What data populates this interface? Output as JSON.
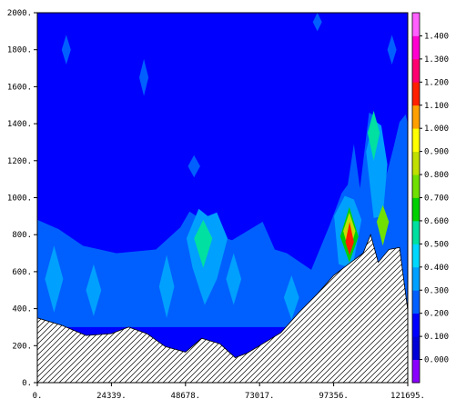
{
  "chart_data": {
    "type": "heatmap",
    "title": "",
    "xlabel": "",
    "ylabel": "",
    "xlim": [
      0,
      121695
    ],
    "ylim": [
      0,
      2000
    ],
    "x_ticks": [
      {
        "value": 0,
        "label": "0."
      },
      {
        "value": 24339,
        "label": "24339."
      },
      {
        "value": 48678,
        "label": "48678."
      },
      {
        "value": 73017,
        "label": "73017."
      },
      {
        "value": 97356,
        "label": "97356."
      },
      {
        "value": 121695,
        "label": "121695."
      }
    ],
    "y_ticks": [
      {
        "value": 0,
        "label": "0."
      },
      {
        "value": 200,
        "label": "200."
      },
      {
        "value": 400,
        "label": "400."
      },
      {
        "value": 600,
        "label": "600."
      },
      {
        "value": 800,
        "label": "800."
      },
      {
        "value": 1000,
        "label": "1000."
      },
      {
        "value": 1200,
        "label": "1200."
      },
      {
        "value": 1400,
        "label": "1400."
      },
      {
        "value": 1600,
        "label": "1600."
      },
      {
        "value": 1800,
        "label": "1800."
      },
      {
        "value": 2000,
        "label": "2000."
      }
    ],
    "colorbar": {
      "levels": [
        {
          "label": "",
          "color": "#8a00ff"
        },
        {
          "label": "0.000",
          "color": "#0000d8"
        },
        {
          "label": "0.100",
          "color": "#0000ff"
        },
        {
          "label": "0.200",
          "color": "#0060ff"
        },
        {
          "label": "0.300",
          "color": "#00a0ff"
        },
        {
          "label": "0.400",
          "color": "#00d8ff"
        },
        {
          "label": "0.500",
          "color": "#00e0a0"
        },
        {
          "label": "0.600",
          "color": "#00d000"
        },
        {
          "label": "0.700",
          "color": "#70e000"
        },
        {
          "label": "0.800",
          "color": "#c0e000"
        },
        {
          "label": "0.900",
          "color": "#ffff00"
        },
        {
          "label": "1.000",
          "color": "#ffa000"
        },
        {
          "label": "1.100",
          "color": "#ff2000"
        },
        {
          "label": "1.200",
          "color": "#ff0070"
        },
        {
          "label": "1.300",
          "color": "#ff00d0"
        },
        {
          "label": "1.400",
          "color": "#ff60ff"
        }
      ]
    },
    "terrain": {
      "x": [
        0,
        8000,
        16000,
        24339,
        30000,
        36000,
        42000,
        48678,
        54000,
        60000,
        65000,
        69000,
        73017,
        80000,
        86000,
        92000,
        97356,
        103000,
        107000,
        109500,
        112000,
        115500,
        119000,
        121695
      ],
      "y": [
        350,
        310,
        255,
        265,
        300,
        265,
        195,
        165,
        240,
        210,
        135,
        160,
        200,
        270,
        380,
        480,
        580,
        650,
        700,
        800,
        650,
        720,
        730,
        390
      ]
    },
    "features": [
      {
        "label": "0.200",
        "x": [
          0,
          7000,
          15000,
          26000,
          39000,
          47000,
          50000,
          56000,
          60000,
          64000,
          70000,
          74000,
          78000,
          82000,
          90000,
          96000,
          100000,
          102000,
          104000,
          106000,
          109000,
          111000,
          114000,
          117000,
          119000,
          121000,
          121695,
          121695,
          112000,
          105000,
          86000,
          66000,
          40000,
          0
        ],
        "y": [
          880,
          830,
          740,
          700,
          720,
          840,
          925,
          860,
          790,
          770,
          830,
          870,
          720,
          700,
          610,
          850,
          1025,
          1070,
          1290,
          1050,
          1460,
          1440,
          1080,
          1270,
          1410,
          1450,
          1400,
          300,
          300,
          300,
          300,
          300,
          300,
          300
        ]
      },
      {
        "label": "0.200",
        "x": [
          8000,
          9500,
          11000,
          9500
        ],
        "y": [
          1800,
          1720,
          1800,
          1880
        ]
      },
      {
        "label": "0.200",
        "x": [
          33500,
          35000,
          36500,
          35000
        ],
        "y": [
          1650,
          1550,
          1650,
          1750
        ]
      },
      {
        "label": "0.200",
        "x": [
          90500,
          92000,
          93500,
          92000
        ],
        "y": [
          1950,
          1900,
          1950,
          2000
        ]
      },
      {
        "label": "0.200",
        "x": [
          115000,
          116500,
          118000,
          116500
        ],
        "y": [
          1800,
          1720,
          1800,
          1880
        ]
      },
      {
        "label": "0.200",
        "x": [
          49500,
          51500,
          53500,
          51500
        ],
        "y": [
          1170,
          1110,
          1170,
          1230
        ]
      },
      {
        "label": "0.300",
        "x": [
          2500,
          5500,
          8500,
          5500
        ],
        "y": [
          560,
          380,
          560,
          740
        ]
      },
      {
        "label": "0.300",
        "x": [
          16000,
          18500,
          21000,
          18500
        ],
        "y": [
          500,
          360,
          500,
          640
        ]
      },
      {
        "label": "0.300",
        "x": [
          40000,
          42500,
          45000,
          42500
        ],
        "y": [
          520,
          350,
          520,
          690
        ]
      },
      {
        "label": "0.300",
        "x": [
          49000,
          53000,
          56000,
          59000,
          62500,
          59000,
          55000,
          51000
        ],
        "y": [
          780,
          940,
          900,
          920,
          780,
          560,
          420,
          620
        ]
      },
      {
        "label": "0.300",
        "x": [
          62000,
          64500,
          67000,
          64500
        ],
        "y": [
          560,
          420,
          560,
          700
        ]
      },
      {
        "label": "0.300",
        "x": [
          81000,
          83500,
          86000,
          83500
        ],
        "y": [
          460,
          340,
          460,
          580
        ]
      },
      {
        "label": "0.300",
        "x": [
          97500,
          101000,
          104000,
          106500,
          103500,
          99000
        ],
        "y": [
          900,
          1010,
          990,
          880,
          620,
          640
        ]
      },
      {
        "label": "0.300",
        "x": [
          108000,
          110500,
          113000,
          115000,
          113500,
          110500
        ],
        "y": [
          1250,
          1420,
          1390,
          1180,
          900,
          890
        ]
      },
      {
        "label": "0.500",
        "x": [
          51500,
          54500,
          57500,
          54500
        ],
        "y": [
          780,
          880,
          780,
          620
        ]
      },
      {
        "label": "0.500",
        "x": [
          108500,
          110500,
          112500,
          110500
        ],
        "y": [
          1350,
          1470,
          1350,
          1200
        ]
      },
      {
        "label": "0.600",
        "x": [
          99500,
          102500,
          105500,
          102500
        ],
        "y": [
          790,
          950,
          790,
          650
        ]
      },
      {
        "label": "0.700",
        "x": [
          111500,
          113500,
          115500,
          113500
        ],
        "y": [
          870,
          960,
          870,
          740
        ]
      },
      {
        "label": "0.800",
        "x": [
          100500,
          102500,
          104500,
          102500
        ],
        "y": [
          820,
          920,
          820,
          700
        ]
      },
      {
        "label": "1.100",
        "x": [
          101200,
          102600,
          104000,
          102600
        ],
        "y": [
          760,
          870,
          760,
          690
        ]
      }
    ]
  }
}
